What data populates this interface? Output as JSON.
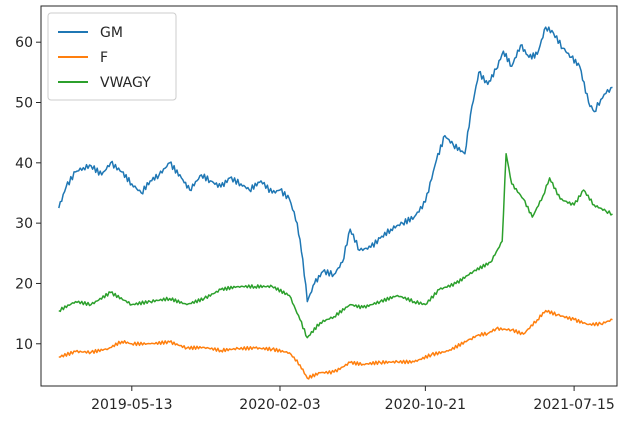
{
  "chart_data": {
    "type": "line",
    "title": "",
    "xlabel": "",
    "ylabel": "",
    "x_type": "date",
    "xlim": [
      "2018-12-01",
      "2021-09-30"
    ],
    "ylim": [
      3,
      66
    ],
    "x_ticks": [
      "2019-05-13",
      "2020-02-03",
      "2020-10-21",
      "2021-07-15"
    ],
    "y_ticks": [
      10,
      20,
      30,
      40,
      50,
      60
    ],
    "grid": false,
    "legend_position": "top-left",
    "series": [
      {
        "name": "GM",
        "color": "#1f77b4",
        "points": [
          [
            "2019-01-02",
            32.5
          ],
          [
            "2019-01-15",
            36.0
          ],
          [
            "2019-02-01",
            38.5
          ],
          [
            "2019-02-15",
            39.2
          ],
          [
            "2019-03-01",
            39.5
          ],
          [
            "2019-03-20",
            38.0
          ],
          [
            "2019-04-05",
            40.0
          ],
          [
            "2019-04-25",
            38.5
          ],
          [
            "2019-05-13",
            36.5
          ],
          [
            "2019-05-30",
            35.0
          ],
          [
            "2019-06-15",
            37.0
          ],
          [
            "2019-07-01",
            38.0
          ],
          [
            "2019-07-20",
            40.0
          ],
          [
            "2019-08-10",
            37.5
          ],
          [
            "2019-08-25",
            35.5
          ],
          [
            "2019-09-15",
            38.0
          ],
          [
            "2019-10-01",
            37.0
          ],
          [
            "2019-10-20",
            36.0
          ],
          [
            "2019-11-05",
            37.5
          ],
          [
            "2019-11-25",
            36.5
          ],
          [
            "2019-12-10",
            35.5
          ],
          [
            "2019-12-31",
            37.0
          ],
          [
            "2020-01-20",
            35.0
          ],
          [
            "2020-02-03",
            35.5
          ],
          [
            "2020-02-20",
            34.0
          ],
          [
            "2020-03-05",
            30.0
          ],
          [
            "2020-03-15",
            24.0
          ],
          [
            "2020-03-23",
            17.0
          ],
          [
            "2020-04-05",
            20.0
          ],
          [
            "2020-04-20",
            22.0
          ],
          [
            "2020-05-10",
            21.5
          ],
          [
            "2020-05-25",
            23.5
          ],
          [
            "2020-06-08",
            29.0
          ],
          [
            "2020-06-25",
            25.5
          ],
          [
            "2020-07-15",
            26.0
          ],
          [
            "2020-08-01",
            27.5
          ],
          [
            "2020-08-20",
            29.0
          ],
          [
            "2020-09-10",
            30.0
          ],
          [
            "2020-10-01",
            31.0
          ],
          [
            "2020-10-21",
            33.5
          ],
          [
            "2020-11-10",
            40.5
          ],
          [
            "2020-11-25",
            44.5
          ],
          [
            "2020-12-10",
            43.0
          ],
          [
            "2020-12-31",
            41.5
          ],
          [
            "2021-01-10",
            48.0
          ],
          [
            "2021-01-25",
            55.0
          ],
          [
            "2021-02-10",
            53.0
          ],
          [
            "2021-02-25",
            55.5
          ],
          [
            "2021-03-10",
            58.5
          ],
          [
            "2021-03-25",
            56.0
          ],
          [
            "2021-04-10",
            59.5
          ],
          [
            "2021-04-25",
            57.5
          ],
          [
            "2021-05-10",
            58.0
          ],
          [
            "2021-05-25",
            62.5
          ],
          [
            "2021-06-08",
            61.5
          ],
          [
            "2021-06-25",
            59.0
          ],
          [
            "2021-07-10",
            57.5
          ],
          [
            "2021-07-25",
            56.0
          ],
          [
            "2021-08-10",
            50.0
          ],
          [
            "2021-08-20",
            48.5
          ],
          [
            "2021-09-01",
            50.5
          ],
          [
            "2021-09-10",
            51.5
          ],
          [
            "2021-09-22",
            52.5
          ]
        ]
      },
      {
        "name": "F",
        "color": "#ff7f0e",
        "points": [
          [
            "2019-01-02",
            7.8
          ],
          [
            "2019-02-01",
            8.7
          ],
          [
            "2019-03-01",
            8.6
          ],
          [
            "2019-04-01",
            9.2
          ],
          [
            "2019-04-25",
            10.4
          ],
          [
            "2019-05-13",
            10.0
          ],
          [
            "2019-06-15",
            10.0
          ],
          [
            "2019-07-20",
            10.3
          ],
          [
            "2019-08-20",
            9.3
          ],
          [
            "2019-09-20",
            9.4
          ],
          [
            "2019-10-20",
            8.9
          ],
          [
            "2019-11-20",
            9.2
          ],
          [
            "2019-12-20",
            9.3
          ],
          [
            "2020-01-20",
            9.1
          ],
          [
            "2020-02-20",
            8.5
          ],
          [
            "2020-03-10",
            6.5
          ],
          [
            "2020-03-23",
            4.3
          ],
          [
            "2020-04-15",
            5.2
          ],
          [
            "2020-05-10",
            5.3
          ],
          [
            "2020-06-08",
            6.9
          ],
          [
            "2020-07-01",
            6.6
          ],
          [
            "2020-08-01",
            6.9
          ],
          [
            "2020-09-01",
            7.0
          ],
          [
            "2020-10-01",
            7.0
          ],
          [
            "2020-11-01",
            8.2
          ],
          [
            "2020-12-01",
            8.8
          ],
          [
            "2021-01-10",
            10.8
          ],
          [
            "2021-01-25",
            11.5
          ],
          [
            "2021-02-10",
            11.7
          ],
          [
            "2021-02-25",
            12.5
          ],
          [
            "2021-03-25",
            12.3
          ],
          [
            "2021-04-15",
            11.6
          ],
          [
            "2021-05-10",
            14.0
          ],
          [
            "2021-05-25",
            15.5
          ],
          [
            "2021-06-15",
            14.8
          ],
          [
            "2021-07-15",
            14.0
          ],
          [
            "2021-08-10",
            13.2
          ],
          [
            "2021-09-01",
            13.3
          ],
          [
            "2021-09-22",
            14.0
          ]
        ]
      },
      {
        "name": "VWAGY",
        "color": "#2ca02c",
        "points": [
          [
            "2019-01-02",
            15.5
          ],
          [
            "2019-02-01",
            17.0
          ],
          [
            "2019-03-01",
            16.5
          ],
          [
            "2019-04-05",
            18.5
          ],
          [
            "2019-05-13",
            16.5
          ],
          [
            "2019-06-15",
            17.0
          ],
          [
            "2019-07-20",
            17.5
          ],
          [
            "2019-08-20",
            16.5
          ],
          [
            "2019-09-20",
            17.5
          ],
          [
            "2019-10-20",
            19.0
          ],
          [
            "2019-11-20",
            19.5
          ],
          [
            "2019-12-20",
            19.5
          ],
          [
            "2020-01-20",
            19.5
          ],
          [
            "2020-02-20",
            18.0
          ],
          [
            "2020-03-10",
            14.0
          ],
          [
            "2020-03-23",
            11.0
          ],
          [
            "2020-04-15",
            13.5
          ],
          [
            "2020-05-10",
            14.5
          ],
          [
            "2020-06-08",
            16.5
          ],
          [
            "2020-07-01",
            16.0
          ],
          [
            "2020-08-01",
            17.0
          ],
          [
            "2020-09-01",
            18.0
          ],
          [
            "2020-10-01",
            17.0
          ],
          [
            "2020-10-21",
            16.5
          ],
          [
            "2020-11-15",
            19.0
          ],
          [
            "2020-12-15",
            20.0
          ],
          [
            "2021-01-15",
            22.0
          ],
          [
            "2021-02-15",
            23.5
          ],
          [
            "2021-03-08",
            27.0
          ],
          [
            "2021-03-15",
            41.5
          ],
          [
            "2021-03-25",
            36.5
          ],
          [
            "2021-04-15",
            34.0
          ],
          [
            "2021-05-01",
            31.0
          ],
          [
            "2021-05-20",
            34.5
          ],
          [
            "2021-06-01",
            37.5
          ],
          [
            "2021-06-20",
            34.0
          ],
          [
            "2021-07-15",
            33.0
          ],
          [
            "2021-08-01",
            35.5
          ],
          [
            "2021-08-20",
            33.0
          ],
          [
            "2021-09-10",
            32.0
          ],
          [
            "2021-09-22",
            31.5
          ]
        ]
      }
    ]
  }
}
